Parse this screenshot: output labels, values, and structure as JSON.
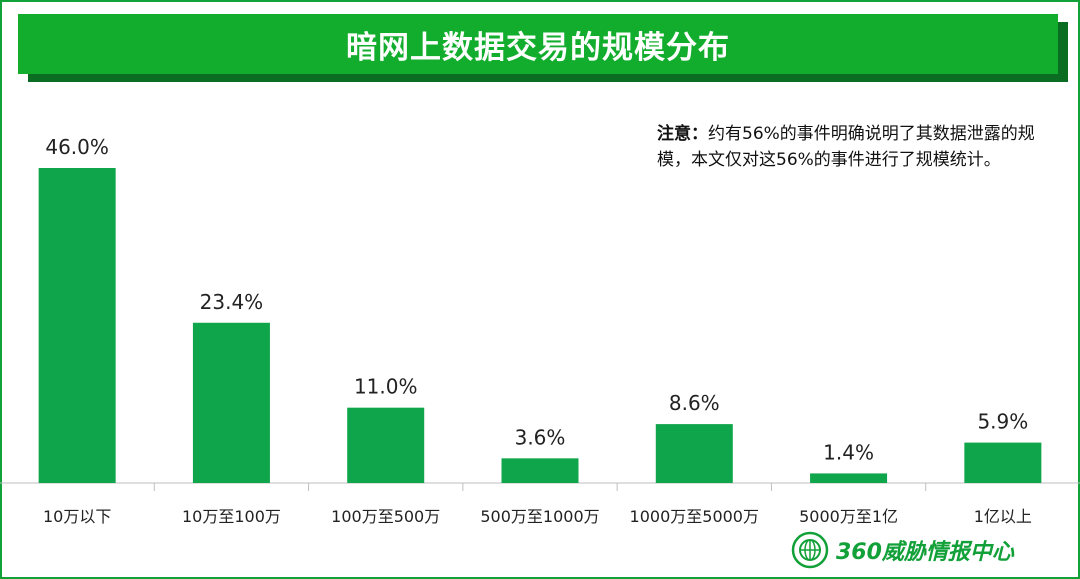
{
  "header": {
    "title": "暗网上数据交易的规模分布"
  },
  "note": {
    "label": "注意：",
    "text": "约有56%的事件明确说明了其数据泄露的规模，本文仅对这56%的事件进行了规模统计。"
  },
  "chart_data": {
    "type": "bar",
    "title": "暗网上数据交易的规模分布",
    "categories": [
      "10万以下",
      "10万至100万",
      "100万至500万",
      "500万至1000万",
      "1000万至5000万",
      "5000万至1亿",
      "1亿以上"
    ],
    "values": [
      46.0,
      23.4,
      11.0,
      3.6,
      8.6,
      1.4,
      5.9
    ],
    "value_labels": [
      "46.0%",
      "23.4%",
      "11.0%",
      "3.6%",
      "8.6%",
      "1.4%",
      "5.9%"
    ],
    "ylim": [
      0,
      50
    ],
    "grid": false,
    "bar_color": "#0fa54a"
  },
  "brand": {
    "name": "360威胁情报中心",
    "color": "#12a038"
  }
}
